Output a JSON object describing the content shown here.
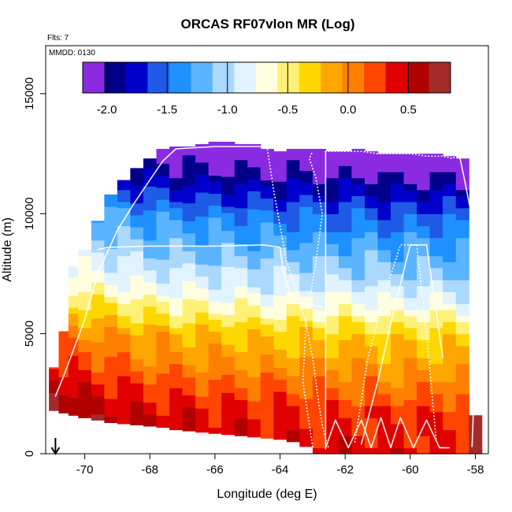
{
  "chart_data": {
    "type": "heatmap",
    "title": "ORCAS RF07vlon MR (Log)",
    "annotations": [
      "Flts: 7",
      "MMDD: 0130"
    ],
    "xlabel": "Longitude (deg E)",
    "ylabel": "Altitude (m)",
    "xlim": [
      -71.2,
      -57.6
    ],
    "ylim": [
      0,
      17000
    ],
    "xticks": [
      "-70",
      "-68",
      "-66",
      "-64",
      "-62",
      "-60",
      "-58"
    ],
    "xtick_values": [
      -70,
      -68,
      -66,
      -64,
      -62,
      -60,
      -58
    ],
    "yticks": [
      "0",
      "5000",
      "10000",
      "15000"
    ],
    "ytick_values": [
      0,
      5000,
      10000,
      15000
    ],
    "colorbar": {
      "range": [
        -2.2,
        0.85
      ],
      "ticks": [
        "-2.0",
        "-1.5",
        "-1.0",
        "-0.5",
        "0.0",
        "0.5"
      ],
      "tick_values": [
        -2.0,
        -1.5,
        -1.0,
        -0.5,
        0.0,
        0.5
      ],
      "colors": [
        "#8a2be2",
        "#00008b",
        "#0000cd",
        "#1e5ae6",
        "#1e90ff",
        "#5ab4ff",
        "#aad8ff",
        "#e0f3ff",
        "#ffffe0",
        "#fff176",
        "#ffd700",
        "#ffa500",
        "#ff7f00",
        "#ff4500",
        "#e00000",
        "#b00000",
        "#a52a2a"
      ]
    },
    "profile_columns": [
      {
        "x": -70.9,
        "bottom": 1800,
        "top": 3600,
        "value": 0.6
      },
      {
        "x": -70.6,
        "bottom": 1700,
        "top": 5100,
        "value": 0.5
      },
      {
        "x": -70.3,
        "bottom": 1600,
        "top": 7800,
        "value": 0.3
      },
      {
        "x": -70.0,
        "bottom": 1500,
        "top": 8500,
        "value": 0.2
      },
      {
        "x": -69.6,
        "bottom": 1400,
        "top": 9700,
        "value": 0.1
      },
      {
        "x": -69.2,
        "bottom": 1300,
        "top": 10800,
        "value": 0.0
      },
      {
        "x": -68.8,
        "bottom": 1250,
        "top": 11400,
        "value": -0.1
      },
      {
        "x": -68.4,
        "bottom": 1200,
        "top": 11900,
        "value": -0.2
      },
      {
        "x": -68.0,
        "bottom": 1150,
        "top": 12300,
        "value": -0.3
      },
      {
        "x": -67.6,
        "bottom": 1100,
        "top": 12700,
        "value": -0.3
      },
      {
        "x": -67.2,
        "bottom": 1000,
        "top": 12800,
        "value": -0.4
      },
      {
        "x": -66.8,
        "bottom": 950,
        "top": 12800,
        "value": -0.4
      },
      {
        "x": -66.4,
        "bottom": 900,
        "top": 12900,
        "value": -0.5
      },
      {
        "x": -66.0,
        "bottom": 850,
        "top": 13000,
        "value": -0.5
      },
      {
        "x": -65.6,
        "bottom": 800,
        "top": 13000,
        "value": -0.5
      },
      {
        "x": -65.2,
        "bottom": 750,
        "top": 12900,
        "value": -0.5
      },
      {
        "x": -64.8,
        "bottom": 700,
        "top": 12900,
        "value": -0.6
      },
      {
        "x": -64.4,
        "bottom": 650,
        "top": 12700,
        "value": -0.6
      },
      {
        "x": -64.0,
        "bottom": 600,
        "top": 12600,
        "value": -0.6
      },
      {
        "x": -63.6,
        "bottom": 500,
        "top": 12700,
        "value": -0.6
      },
      {
        "x": -63.2,
        "bottom": 300,
        "top": 12700,
        "value": -0.6
      },
      {
        "x": -62.8,
        "bottom": 0,
        "top": 12700,
        "value": -0.7
      },
      {
        "x": -62.4,
        "bottom": 0,
        "top": 12600,
        "value": -0.7
      },
      {
        "x": -62.0,
        "bottom": 0,
        "top": 12600,
        "value": -0.7
      },
      {
        "x": -61.6,
        "bottom": 0,
        "top": 12700,
        "value": -0.7
      },
      {
        "x": -61.2,
        "bottom": 0,
        "top": 12600,
        "value": -0.7
      },
      {
        "x": -60.8,
        "bottom": 0,
        "top": 12500,
        "value": -0.8
      },
      {
        "x": -60.4,
        "bottom": 0,
        "top": 12500,
        "value": -0.8
      },
      {
        "x": -60.0,
        "bottom": 0,
        "top": 12500,
        "value": -0.8
      },
      {
        "x": -59.6,
        "bottom": 0,
        "top": 12500,
        "value": -0.8
      },
      {
        "x": -59.2,
        "bottom": 0,
        "top": 12500,
        "value": -0.8
      },
      {
        "x": -58.8,
        "bottom": 0,
        "top": 12400,
        "value": -0.8
      },
      {
        "x": -58.4,
        "bottom": 0,
        "top": 12300,
        "value": -0.9
      },
      {
        "x": -58.0,
        "bottom": 0,
        "top": 1600,
        "value": 0.7
      }
    ],
    "vertical_profile": [
      {
        "altitude": 0,
        "value": 0.7
      },
      {
        "altitude": 1000,
        "value": 0.6
      },
      {
        "altitude": 2000,
        "value": 0.5
      },
      {
        "altitude": 3000,
        "value": 0.3
      },
      {
        "altitude": 4000,
        "value": 0.1
      },
      {
        "altitude": 5000,
        "value": -0.05
      },
      {
        "altitude": 6000,
        "value": -0.4
      },
      {
        "altitude": 7000,
        "value": -0.7
      },
      {
        "altitude": 8000,
        "value": -0.9
      },
      {
        "altitude": 9000,
        "value": -1.1
      },
      {
        "altitude": 10000,
        "value": -1.3
      },
      {
        "altitude": 11000,
        "value": -1.6
      },
      {
        "altitude": 12000,
        "value": -1.9
      },
      {
        "altitude": 13000,
        "value": -2.1
      }
    ],
    "flight_tracks": [
      {
        "name": "track-1",
        "style": "solid",
        "x": [
          -70.9,
          -70.6,
          -70.0,
          -69.6,
          -69.0,
          -68.5,
          -68.0,
          -67.6,
          -67.2,
          -66.0,
          -65.0,
          -64.4
        ],
        "y": [
          2400,
          3400,
          5600,
          7500,
          9300,
          10400,
          11400,
          12200,
          12700,
          12800,
          12800,
          12800
        ]
      },
      {
        "name": "track-2",
        "style": "dotted",
        "x": [
          -64.4,
          -64.2,
          -64.0,
          -63.8,
          -63.5,
          -63.2,
          -63.0,
          -62.9,
          -62.8,
          -62.7,
          -62.6,
          -62.5
        ],
        "y": [
          12800,
          11000,
          9500,
          8000,
          6800,
          5400,
          4000,
          3000,
          2000,
          1200,
          600,
          200
        ]
      },
      {
        "name": "track-3",
        "style": "solid",
        "x": [
          -69.6,
          -69.3,
          -68.0,
          -66.0,
          -64.5,
          -64.0,
          -63.9,
          -63.7,
          -63.4,
          -63.0,
          -62.7
        ],
        "y": [
          8500,
          8600,
          8650,
          8650,
          8700,
          8600,
          7600,
          6700,
          6300,
          6200,
          6100
        ]
      },
      {
        "name": "track-4",
        "style": "solid",
        "x": [
          -62.6,
          -62.6,
          -62.6,
          -62.6,
          -62.6
        ],
        "y": [
          200,
          4000,
          8000,
          12000,
          12600
        ]
      },
      {
        "name": "track-5",
        "style": "dotted",
        "x": [
          -62.6,
          -62.0,
          -61.5,
          -61.0,
          -60.5,
          -60.0,
          -59.5,
          -59.0,
          -58.7,
          -58.5
        ],
        "y": [
          12600,
          12600,
          12600,
          12500,
          12500,
          12500,
          12400,
          12400,
          12300,
          12500
        ]
      },
      {
        "name": "track-6",
        "style": "solid",
        "x": [
          -58.5,
          -58.3,
          -58.1,
          -58.0,
          -58.0,
          -58.1
        ],
        "y": [
          12500,
          11200,
          9800,
          7000,
          4000,
          300
        ]
      },
      {
        "name": "track-7",
        "style": "dotted",
        "x": [
          -63.0,
          -63.3,
          -63.2,
          -62.9,
          -62.7,
          -62.9,
          -63.1,
          -63.0
        ],
        "y": [
          300,
          3000,
          5500,
          8000,
          10000,
          11500,
          12300,
          12600
        ]
      },
      {
        "name": "track-8",
        "style": "solid",
        "x": [
          -62.6,
          -62.3,
          -61.9,
          -61.5,
          -61.2,
          -60.9,
          -60.6,
          -60.3,
          -59.9,
          -59.5,
          -59.1,
          -58.8
        ],
        "y": [
          250,
          1400,
          250,
          1400,
          250,
          1500,
          250,
          1500,
          250,
          1400,
          250,
          250
        ]
      },
      {
        "name": "track-9",
        "style": "dotted",
        "x": [
          -61.7,
          -61.3,
          -60.7,
          -60.3,
          -59.8,
          -59.5,
          -59.2
        ],
        "y": [
          500,
          4000,
          7000,
          8700,
          8700,
          5000,
          500
        ]
      },
      {
        "name": "track-10",
        "style": "solid",
        "x": [
          -61.5,
          -61.0,
          -60.5,
          -60.0,
          -59.5,
          -59.0
        ],
        "y": [
          400,
          3000,
          6000,
          8700,
          8700,
          4000
        ]
      }
    ],
    "marker": {
      "x": -70.9,
      "label": "down-arrow"
    }
  }
}
